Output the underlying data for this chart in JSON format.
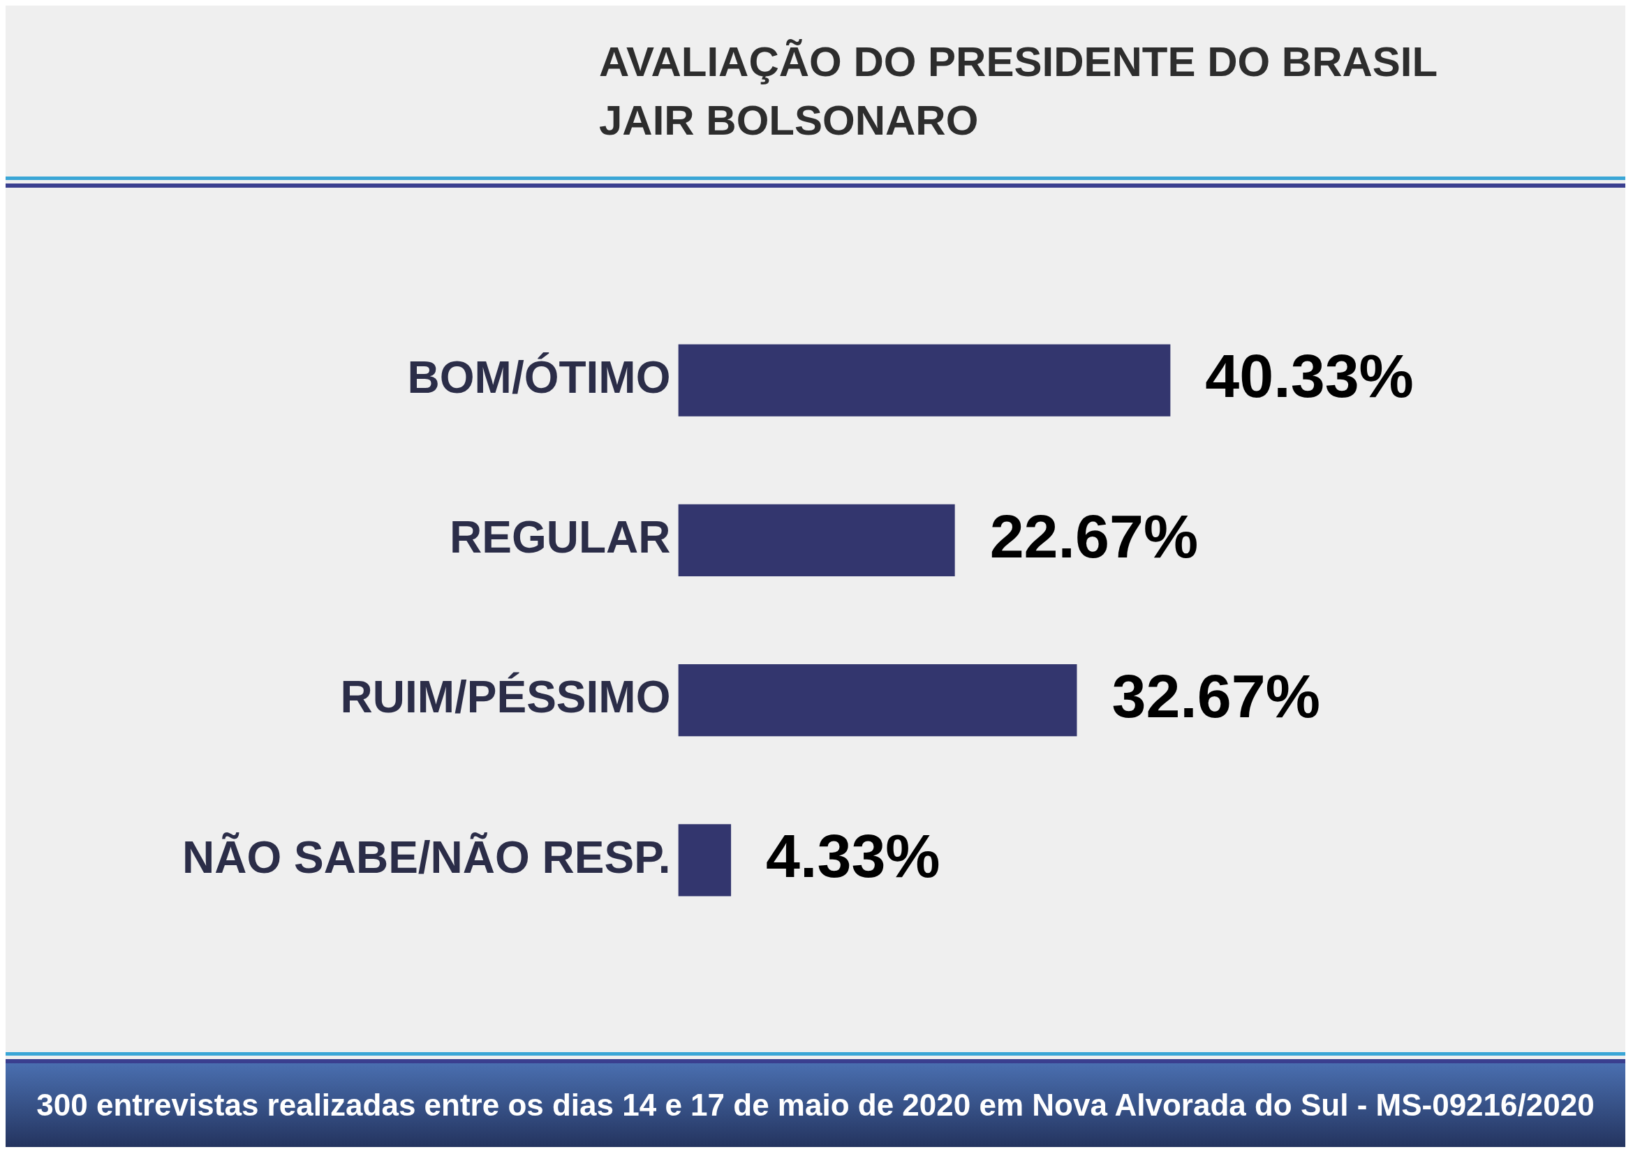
{
  "chart_data": {
    "type": "bar",
    "orientation": "horizontal",
    "title": "AVALIAÇÃO DO PRESIDENTE DO BRASIL\nJAIR BOLSONARO",
    "categories": [
      "BOM/ÓTIMO",
      "REGULAR",
      "RUIM/PÉSSIMO",
      "NÃO SABE/NÃO RESP."
    ],
    "values": [
      40.33,
      22.67,
      32.67,
      4.33
    ],
    "value_labels": [
      "40.33%",
      "22.67%",
      "32.67%",
      "4.33%"
    ],
    "color": "#33366e",
    "legend": false,
    "annotations": [
      "300 entrevistas realizadas entre os dias 14 e 17 de maio de 2020 em Nova Alvorada do Sul - MS-09216/2020"
    ]
  }
}
